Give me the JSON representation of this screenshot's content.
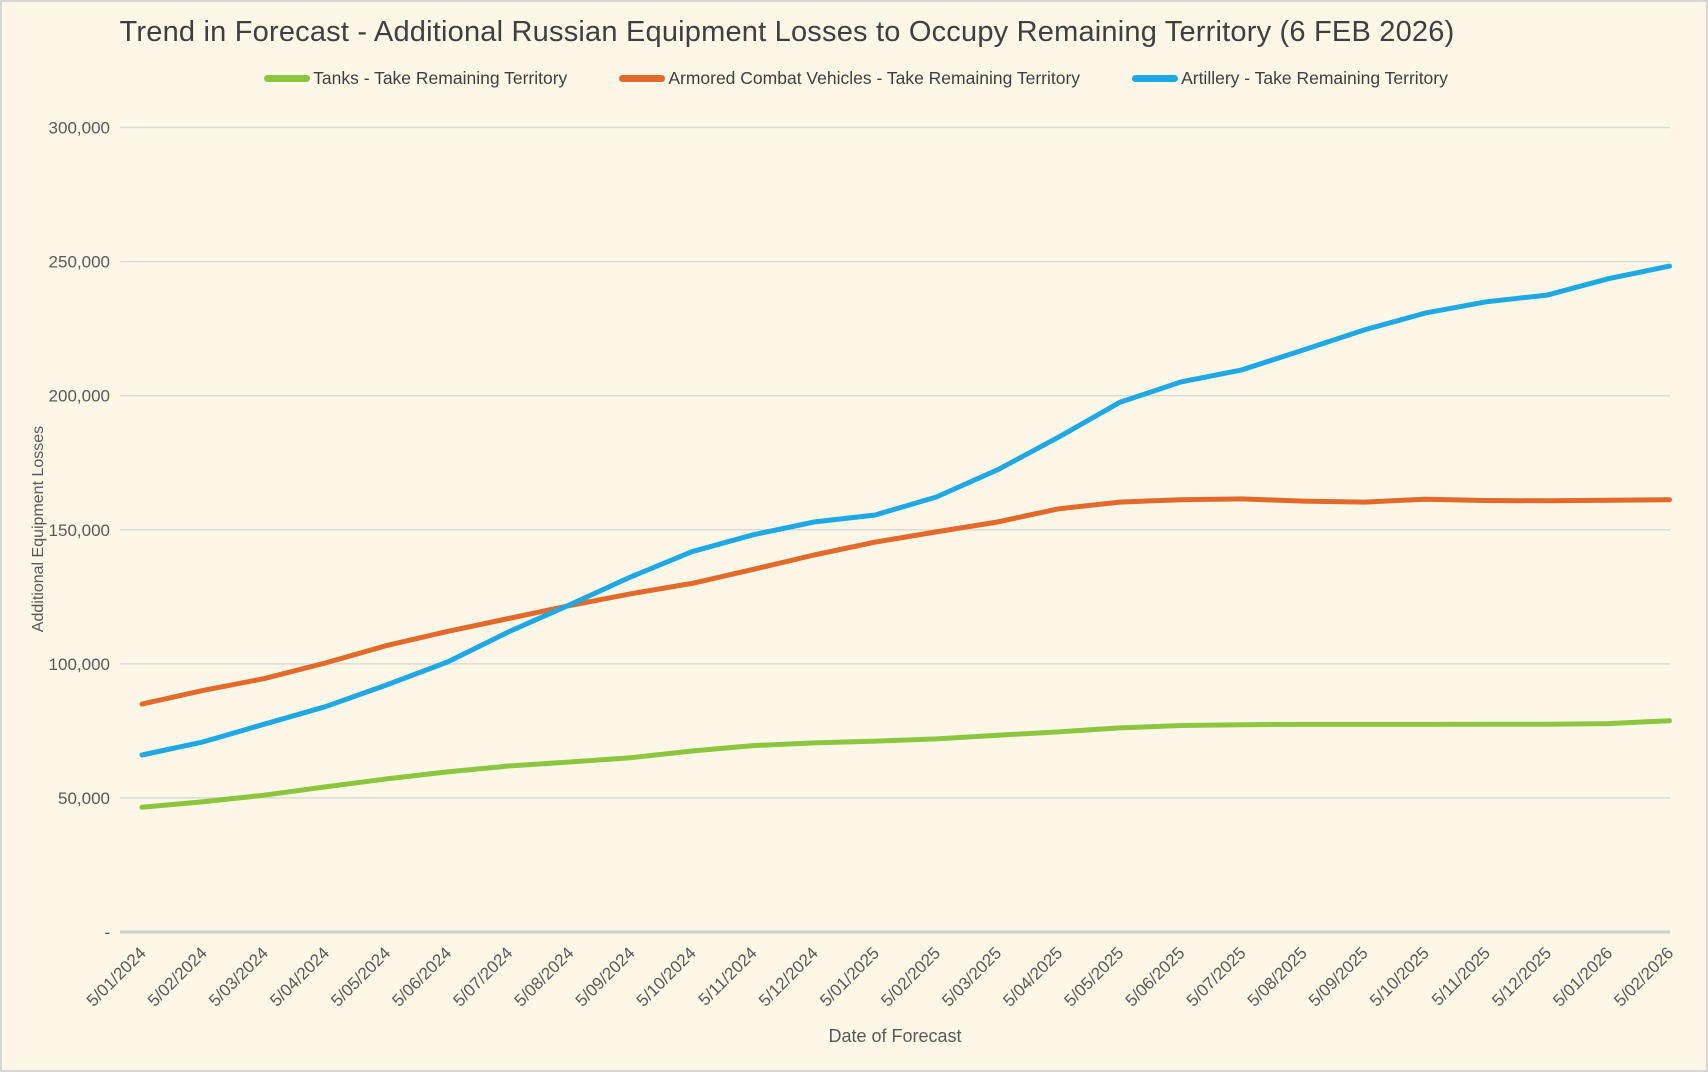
{
  "chart_data": {
    "type": "line",
    "title": "Trend in Forecast - Additional Russian Equipment Losses to Occupy Remaining Territory (6 FEB 2026)",
    "xlabel": "Date of Forecast",
    "ylabel": "Additional Equipment Losses",
    "legend_position": "top",
    "grid": "horizontal",
    "ylim": [
      0,
      300000
    ],
    "y_tick_step": 50000,
    "y_tick_labels": [
      "-",
      "50,000",
      "100,000",
      "150,000",
      "200,000",
      "250,000",
      "300,000"
    ],
    "categories": [
      "5/01/2024",
      "5/02/2024",
      "5/03/2024",
      "5/04/2024",
      "5/05/2024",
      "5/06/2024",
      "5/07/2024",
      "5/08/2024",
      "5/09/2024",
      "5/10/2024",
      "5/11/2024",
      "5/12/2024",
      "5/01/2025",
      "5/02/2025",
      "5/03/2025",
      "5/04/2025",
      "5/05/2025",
      "5/06/2025",
      "5/07/2025",
      "5/08/2025",
      "5/09/2025",
      "5/10/2025",
      "5/11/2025",
      "5/12/2025",
      "5/01/2026",
      "5/02/2026"
    ],
    "series": [
      {
        "name": "Tanks - Take Remaining Territory",
        "color": "#8CC63E",
        "values": [
          46500,
          48600,
          51000,
          54100,
          57100,
          59700,
          61900,
          63400,
          65000,
          67500,
          69500,
          70500,
          71200,
          72000,
          73400,
          74600,
          76100,
          77000,
          77300,
          77400,
          77400,
          77400,
          77500,
          77500,
          77700,
          78800
        ]
      },
      {
        "name": "Armored Combat Vehicles - Take Remaining Territory",
        "color": "#E36A2A",
        "values": [
          85000,
          90100,
          94500,
          100300,
          106800,
          112100,
          116900,
          121700,
          126100,
          130000,
          135200,
          140600,
          145400,
          149200,
          152900,
          157800,
          160300,
          161200,
          161500,
          160700,
          160300,
          161400,
          160900,
          160800,
          161000,
          161200
        ]
      },
      {
        "name": "Artillery - Take Remaining Territory",
        "color": "#1FA9E4",
        "values": [
          66000,
          70900,
          77500,
          84000,
          92100,
          100700,
          111900,
          122000,
          132400,
          141800,
          148100,
          152900,
          155500,
          162200,
          172300,
          184500,
          197500,
          205100,
          209600,
          217000,
          224500,
          230800,
          235000,
          237500,
          243600,
          248300
        ]
      }
    ]
  },
  "colors": {
    "background": "#FCF7E6",
    "border": "#D7D7D7",
    "gridline": "#DBDBD6",
    "axis_line": "#CDCDCB",
    "title_text": "#3F3F3F",
    "tick_text": "#595959"
  }
}
